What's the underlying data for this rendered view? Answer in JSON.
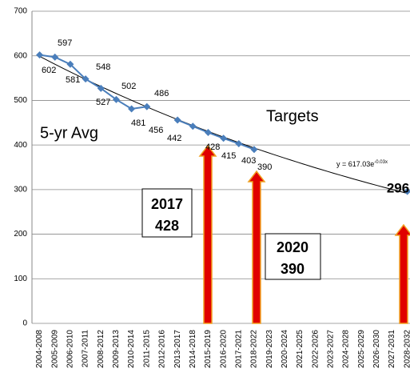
{
  "chart_data": {
    "type": "line",
    "categories": [
      "2004-2008",
      "2005-2009",
      "2006-2010",
      "2007-2011",
      "2008-2012",
      "2009-2013",
      "2010-2014",
      "2011-2015",
      "2012-2016",
      "2013-2017",
      "2014-2018",
      "2015-2019",
      "2016-2020",
      "2017-2021",
      "2018-2022",
      "2019-2023",
      "2020-2024",
      "2021-2025",
      "2022-2026",
      "2023-2027",
      "2024-2028",
      "2025-2029",
      "2026-2030",
      "2027-2031",
      "2028-2032"
    ],
    "series": [
      {
        "name": "5-yr Avg",
        "color": "#4a7ebb",
        "values": [
          602,
          597,
          581,
          548,
          527,
          502,
          481,
          486,
          null,
          456,
          442,
          428,
          415,
          403,
          390,
          null,
          null,
          null,
          null,
          null,
          null,
          null,
          null,
          null,
          296
        ]
      }
    ],
    "ylim": [
      0,
      700
    ],
    "yticks": [
      0,
      100,
      200,
      300,
      400,
      500,
      600,
      700
    ],
    "grid": true,
    "trendline": {
      "a": 617.03,
      "b": -0.03,
      "equation_base": "y = 617.03e",
      "equation_exponent": "-0.03x"
    },
    "annotations": {
      "series_label": "5-yr Avg",
      "targets_label": "Targets",
      "box1": [
        "2017",
        "428"
      ],
      "box2": [
        "2020",
        "390"
      ]
    }
  }
}
